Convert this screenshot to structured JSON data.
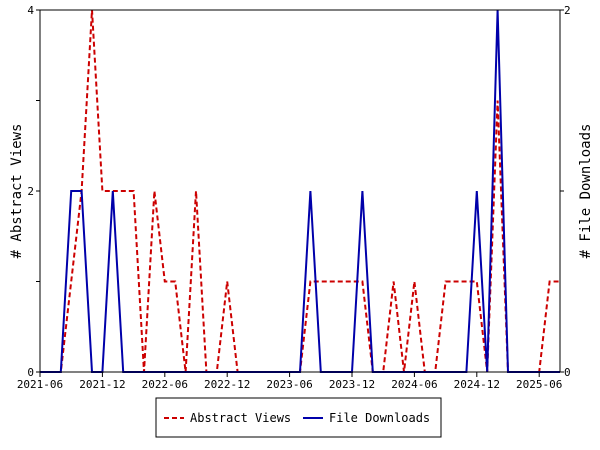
{
  "chart_data": {
    "type": "line",
    "title": "",
    "xlabel": "",
    "ylabel_left": "# Abstract Views",
    "ylabel_right": "# File Downloads",
    "x_range": [
      "2021-06",
      "2025-08"
    ],
    "x_ticks": [
      "2021-06",
      "2021-12",
      "2022-06",
      "2022-12",
      "2023-06",
      "2023-12",
      "2024-06",
      "2024-12",
      "2025-06"
    ],
    "y_left_range": [
      0,
      4
    ],
    "y_left_ticks": [
      "0",
      "2",
      "4"
    ],
    "y_right_range": [
      0,
      2
    ],
    "y_right_ticks": [
      "0",
      "1",
      "2"
    ],
    "grid": false,
    "legend_position": "bottom-center",
    "series": [
      {
        "name": "Abstract Views",
        "axis": "left",
        "color": "#cc0000",
        "style": "dashed",
        "x": [
          "2021-06",
          "2021-07",
          "2021-08",
          "2021-09",
          "2021-10",
          "2021-11",
          "2021-12",
          "2022-01",
          "2022-02",
          "2022-03",
          "2022-04",
          "2022-05",
          "2022-06",
          "2022-07",
          "2022-08",
          "2022-09",
          "2022-10",
          "2022-11",
          "2022-12",
          "2023-01",
          "2023-02",
          "2023-03",
          "2023-04",
          "2023-05",
          "2023-06",
          "2023-07",
          "2023-08",
          "2023-09",
          "2023-10",
          "2023-11",
          "2023-12",
          "2024-01",
          "2024-02",
          "2024-03",
          "2024-04",
          "2024-05",
          "2024-06",
          "2024-07",
          "2024-08",
          "2024-09",
          "2024-10",
          "2024-11",
          "2024-12",
          "2025-01",
          "2025-02",
          "2025-03",
          "2025-04",
          "2025-05",
          "2025-06",
          "2025-07",
          "2025-08"
        ],
        "values": [
          0,
          0,
          0,
          1,
          2,
          4,
          2,
          2,
          2,
          2,
          0,
          2,
          1,
          1,
          0,
          2,
          0,
          0,
          1,
          0,
          0,
          0,
          0,
          0,
          0,
          0,
          1,
          1,
          1,
          1,
          1,
          1,
          0,
          0,
          1,
          0,
          1,
          0,
          0,
          1,
          1,
          1,
          1,
          0,
          3,
          0,
          0,
          0,
          0,
          1,
          1
        ]
      },
      {
        "name": "File Downloads",
        "axis": "right",
        "color": "#0000aa",
        "style": "solid",
        "x": [
          "2021-06",
          "2021-07",
          "2021-08",
          "2021-09",
          "2021-10",
          "2021-11",
          "2021-12",
          "2022-01",
          "2022-02",
          "2022-03",
          "2022-04",
          "2022-05",
          "2022-06",
          "2022-07",
          "2022-08",
          "2022-09",
          "2022-10",
          "2022-11",
          "2022-12",
          "2023-01",
          "2023-02",
          "2023-03",
          "2023-04",
          "2023-05",
          "2023-06",
          "2023-07",
          "2023-08",
          "2023-09",
          "2023-10",
          "2023-11",
          "2023-12",
          "2024-01",
          "2024-02",
          "2024-03",
          "2024-04",
          "2024-05",
          "2024-06",
          "2024-07",
          "2024-08",
          "2024-09",
          "2024-10",
          "2024-11",
          "2024-12",
          "2025-01",
          "2025-02",
          "2025-03",
          "2025-04",
          "2025-05",
          "2025-06",
          "2025-07",
          "2025-08"
        ],
        "values": [
          0,
          0,
          0,
          1,
          1,
          0,
          0,
          1,
          0,
          0,
          0,
          0,
          0,
          0,
          0,
          0,
          0,
          0,
          0,
          0,
          0,
          0,
          0,
          0,
          0,
          0,
          1,
          0,
          0,
          0,
          0,
          1,
          0,
          0,
          0,
          0,
          0,
          0,
          0,
          0,
          0,
          0,
          1,
          0,
          2,
          0,
          0,
          0,
          0,
          0,
          0
        ]
      }
    ]
  }
}
